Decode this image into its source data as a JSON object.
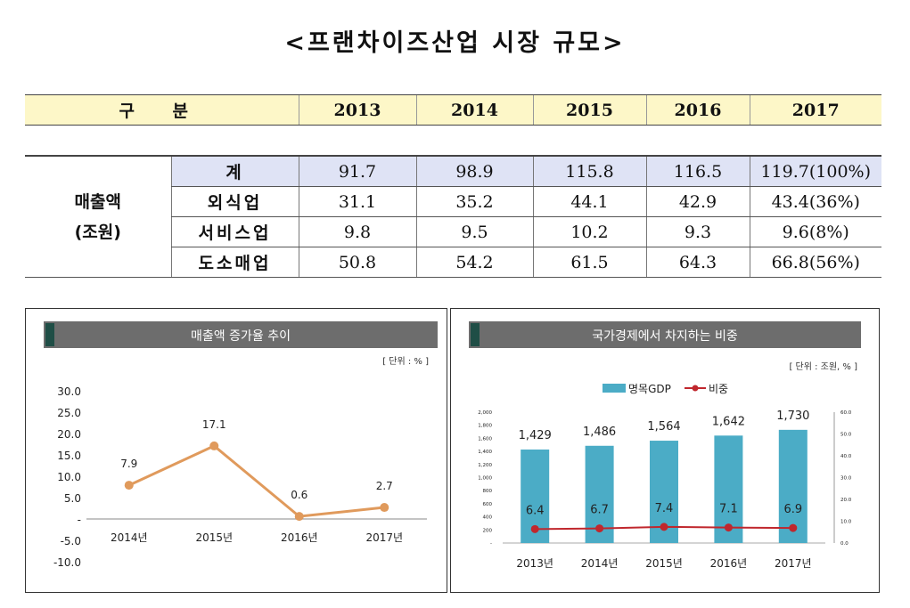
{
  "title": "<프랜차이즈산업 시장 규모>",
  "table": {
    "header": [
      "구 분",
      "2013",
      "2014",
      "2015",
      "2016",
      "2017"
    ],
    "category": [
      "매출액",
      "(조원)"
    ],
    "rows": [
      {
        "label": "계",
        "values": [
          "91.7",
          "98.9",
          "115.8",
          "116.5",
          "119.7(100%)"
        ]
      },
      {
        "label": "외식업",
        "values": [
          "31.1",
          "35.2",
          "44.1",
          "42.9",
          "43.4(36%)"
        ]
      },
      {
        "label": "서비스업",
        "values": [
          "9.8",
          "9.5",
          "10.2",
          "9.3",
          "9.6(8%)"
        ]
      },
      {
        "label": "도소매업",
        "values": [
          "50.8",
          "54.2",
          "61.5",
          "64.3",
          "66.8(56%)"
        ]
      }
    ]
  },
  "chart_data": [
    {
      "type": "line",
      "title": "매출액 증가율 추이",
      "unit_note": "[ 단위 : % ]",
      "categories": [
        "2014년",
        "2015년",
        "2016년",
        "2017년"
      ],
      "values": [
        7.9,
        17.1,
        0.6,
        2.7
      ],
      "data_labels": [
        "7.9",
        "17.1",
        "0.6",
        "2.7"
      ],
      "yticks": [
        "30.0",
        "25.0",
        "20.0",
        "15.0",
        "10.0",
        "5.0",
        "-",
        "-5.0",
        "-10.0"
      ],
      "ylim": [
        -10,
        30
      ],
      "color": "#e09a5c",
      "grid": false
    },
    {
      "type": "bar",
      "title": "국가경제에서 차지하는 비중",
      "unit_note": "[ 단위 : 조원, % ]",
      "categories": [
        "2013년",
        "2014년",
        "2015년",
        "2016년",
        "2017년"
      ],
      "series": [
        {
          "name": "명목GDP",
          "type": "bar",
          "values": [
            1429,
            1486,
            1564,
            1642,
            1730
          ],
          "data_labels": [
            "1,429",
            "1,486",
            "1,564",
            "1,642",
            "1,730"
          ],
          "color": "#4bacc6",
          "axis": "left"
        },
        {
          "name": "비중",
          "type": "line",
          "values": [
            6.4,
            6.7,
            7.4,
            7.1,
            6.9
          ],
          "data_labels": [
            "6.4",
            "6.7",
            "7.4",
            "7.1",
            "6.9"
          ],
          "color": "#c0272d",
          "axis": "right"
        }
      ],
      "left_ticks": [
        "2,000",
        "1,800",
        "1,600",
        "1,400",
        "1,200",
        "1,000",
        "800",
        "600",
        "400",
        "200",
        "-"
      ],
      "right_ticks": [
        "60.0",
        "50.0",
        "40.0",
        "30.0",
        "20.0",
        "10.0",
        "0.0"
      ],
      "ylim_left": [
        0,
        2000
      ],
      "ylim_right": [
        0,
        60
      ],
      "legend_position": "top-center",
      "grid": false
    }
  ]
}
